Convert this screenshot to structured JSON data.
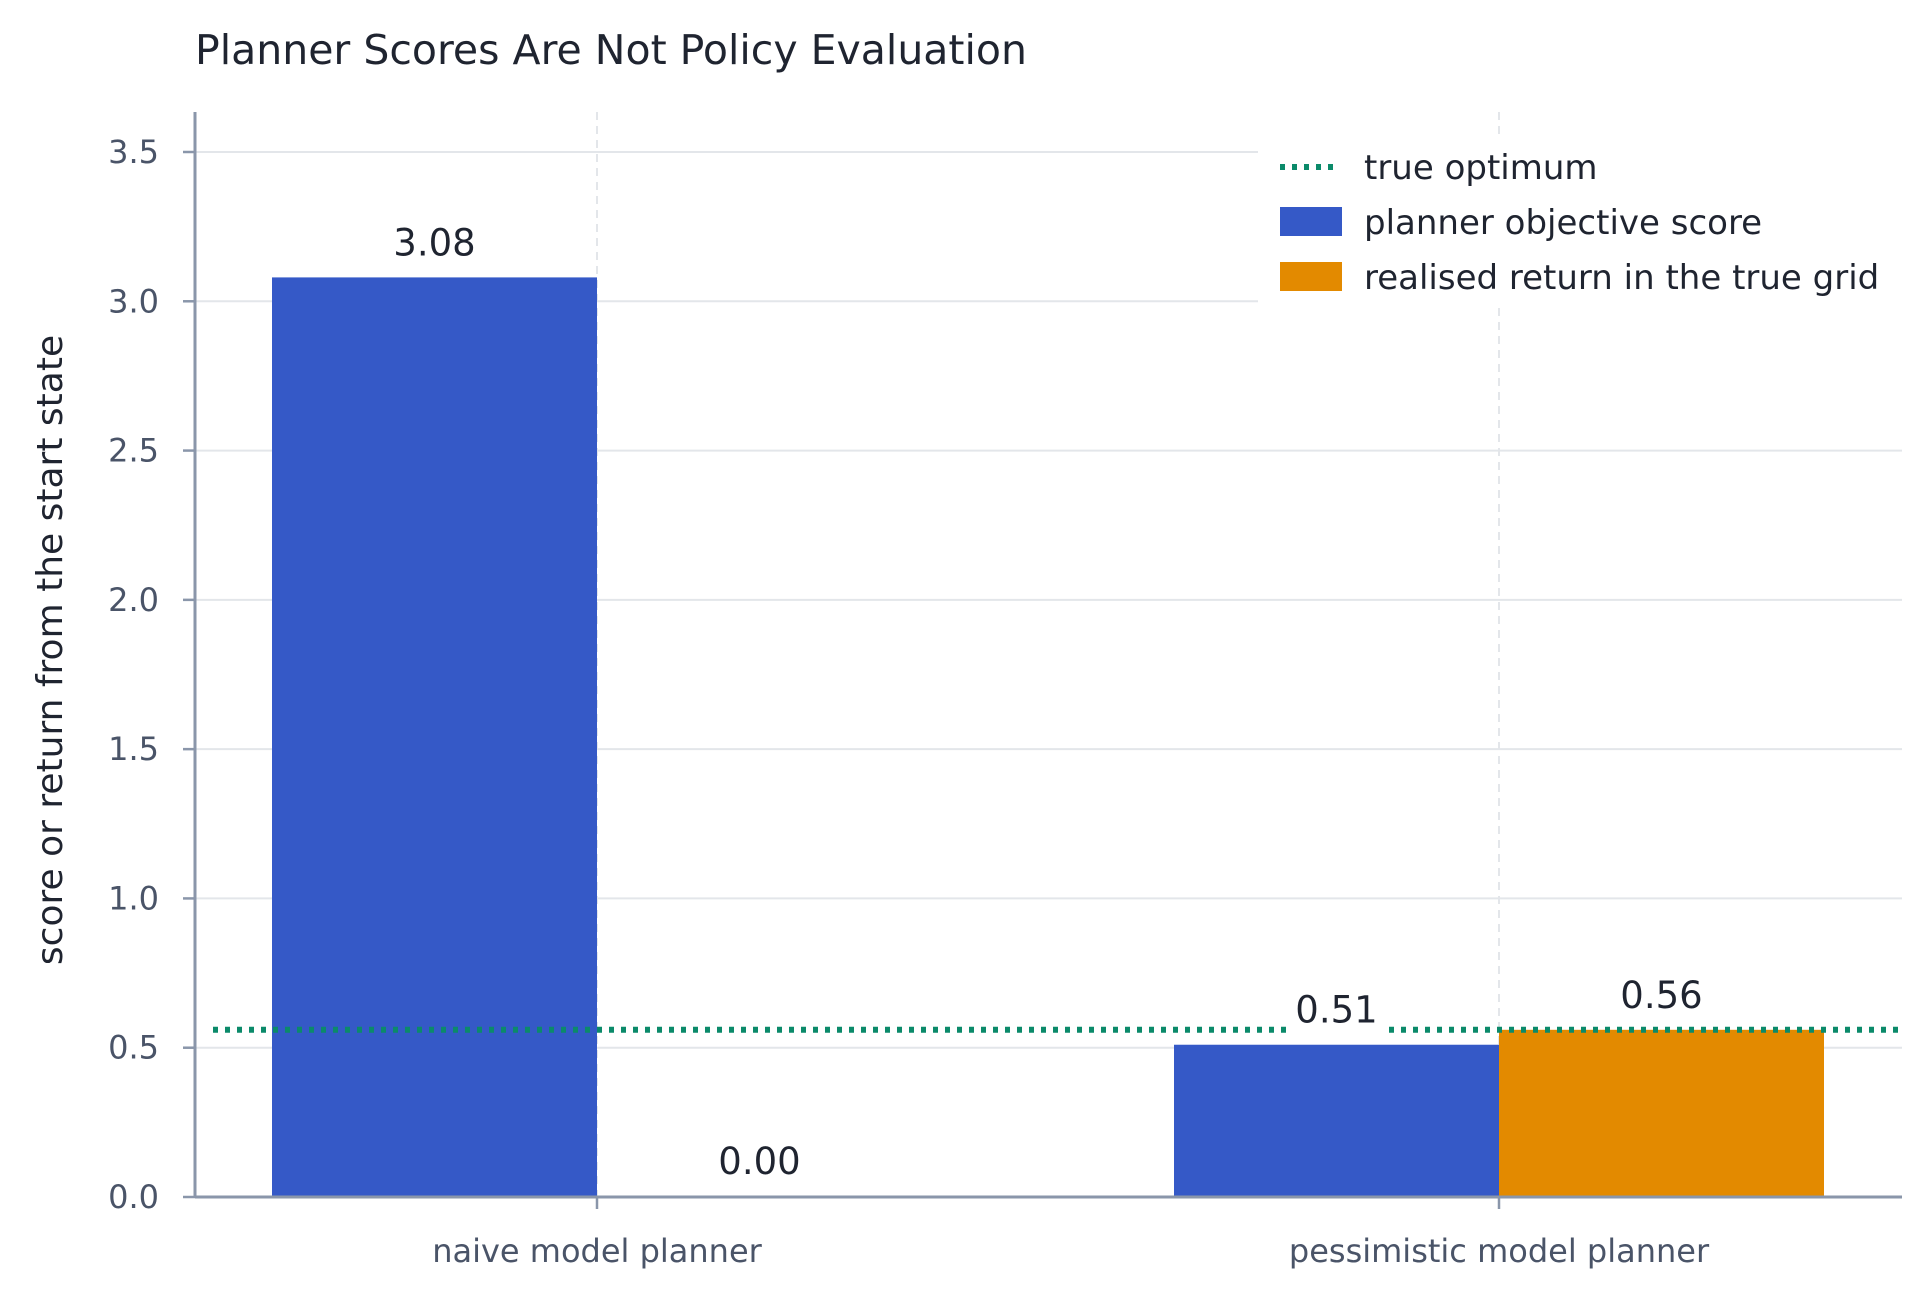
{
  "chart_data": {
    "type": "bar",
    "title": "Planner Scores Are Not Policy Evaluation",
    "xlabel": "",
    "ylabel": "score or return from the start state",
    "categories": [
      "naive model planner",
      "pessimistic model planner"
    ],
    "ylim": [
      0,
      3.65
    ],
    "yticks": [
      "0.0",
      "0.5",
      "1.0",
      "1.5",
      "2.0",
      "2.5",
      "3.0",
      "3.5"
    ],
    "series": [
      {
        "name": "planner objective score",
        "values": [
          3.08,
          0.51
        ],
        "labels": [
          "3.08",
          "0.51"
        ],
        "color": "#3559c7"
      },
      {
        "name": "realised return in the true grid",
        "values": [
          0.0,
          0.56
        ],
        "labels": [
          "0.00",
          "0.56"
        ],
        "color": "#e38a00"
      }
    ],
    "reference_line": {
      "name": "true optimum",
      "value": 0.56,
      "color": "#0b8a6a",
      "style": "dotted"
    },
    "legend": "top-right",
    "grid": true
  }
}
